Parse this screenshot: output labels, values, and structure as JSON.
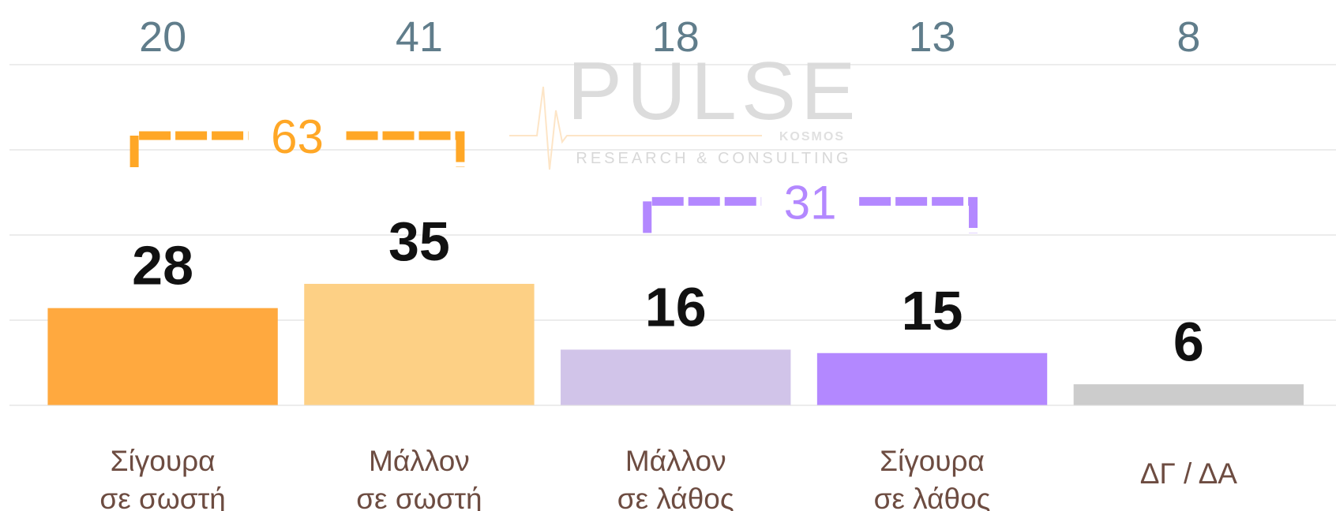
{
  "chart_data": {
    "type": "bar",
    "categories": [
      [
        "Σίγουρα",
        "σε σωστή"
      ],
      [
        "Μάλλον",
        "σε σωστή"
      ],
      [
        "Μάλλον",
        "σε λάθος"
      ],
      [
        "Σίγουρα",
        "σε λάθος"
      ],
      [
        "ΔΓ / ΔΑ"
      ]
    ],
    "values": [
      28,
      35,
      16,
      15,
      6
    ],
    "colors": [
      "#ffa93f",
      "#fdd085",
      "#d1c4e9",
      "#b388ff",
      "#cccccc"
    ],
    "top_values": [
      20,
      41,
      18,
      13,
      8
    ],
    "groups": [
      {
        "value": 63,
        "color": "#ffa726",
        "bars": [
          0,
          1
        ]
      },
      {
        "value": 31,
        "color": "#b388ff",
        "bars": [
          2,
          3
        ]
      }
    ],
    "ylim": [
      0,
      100
    ],
    "watermark": {
      "brand": "PULSE",
      "sub": "KOSMOS",
      "tagline": "RESEARCH & CONSULTING"
    }
  }
}
